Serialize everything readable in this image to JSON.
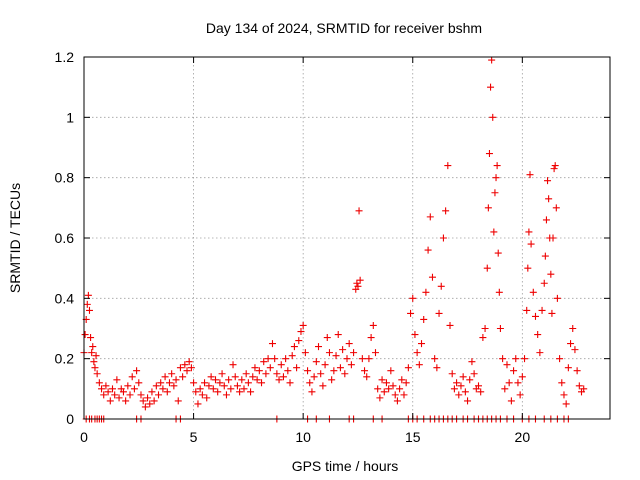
{
  "chart_data": {
    "type": "scatter",
    "title": "Day 134 of 2024, SRMTID for receiver bshm",
    "xlabel": "GPS time / hours",
    "ylabel": "SRMTID / TECUs",
    "xlim": [
      0,
      24
    ],
    "ylim": [
      0,
      1.2
    ],
    "x_ticks": [
      0,
      5,
      10,
      15,
      20
    ],
    "x_tick_labels": [
      "0",
      "5",
      "10",
      "15",
      "20"
    ],
    "y_ticks": [
      0,
      0.2,
      0.4,
      0.6,
      0.8,
      1,
      1.2
    ],
    "y_tick_labels": [
      "0",
      "0.2",
      "0.4",
      "0.6",
      "0.8",
      "1",
      "1.2"
    ],
    "grid": true,
    "marker": "plus",
    "color": "#ee0000",
    "series": [
      {
        "name": "SRMTID",
        "points": [
          [
            0.0,
            0.22
          ],
          [
            0.05,
            0.28
          ],
          [
            0.1,
            0.33
          ],
          [
            0.15,
            0.38
          ],
          [
            0.2,
            0.41
          ],
          [
            0.25,
            0.36
          ],
          [
            0.3,
            0.27
          ],
          [
            0.35,
            0.22
          ],
          [
            0.4,
            0.24
          ],
          [
            0.45,
            0.19
          ],
          [
            0.5,
            0.17
          ],
          [
            0.55,
            0.21
          ],
          [
            0.6,
            0.15
          ],
          [
            0.7,
            0.12
          ],
          [
            0.8,
            0.1
          ],
          [
            0.9,
            0.08
          ],
          [
            1.0,
            0.11
          ],
          [
            1.1,
            0.09
          ],
          [
            1.2,
            0.06
          ],
          [
            1.3,
            0.1
          ],
          [
            1.4,
            0.08
          ],
          [
            1.5,
            0.13
          ],
          [
            1.6,
            0.07
          ],
          [
            1.7,
            0.1
          ],
          [
            1.8,
            0.09
          ],
          [
            1.9,
            0.06
          ],
          [
            2.0,
            0.11
          ],
          [
            2.1,
            0.08
          ],
          [
            2.2,
            0.14
          ],
          [
            2.3,
            0.1
          ],
          [
            2.4,
            0.16
          ],
          [
            2.5,
            0.12
          ],
          [
            2.6,
            0.08
          ],
          [
            2.7,
            0.06
          ],
          [
            2.8,
            0.04
          ],
          [
            2.9,
            0.07
          ],
          [
            3.0,
            0.05
          ],
          [
            3.1,
            0.09
          ],
          [
            3.2,
            0.06
          ],
          [
            3.3,
            0.11
          ],
          [
            3.4,
            0.08
          ],
          [
            3.5,
            0.12
          ],
          [
            3.6,
            0.1
          ],
          [
            3.7,
            0.14
          ],
          [
            3.8,
            0.09
          ],
          [
            3.9,
            0.12
          ],
          [
            4.0,
            0.15
          ],
          [
            4.1,
            0.11
          ],
          [
            4.2,
            0.13
          ],
          [
            4.3,
            0.06
          ],
          [
            4.4,
            0.17
          ],
          [
            4.5,
            0.14
          ],
          [
            4.6,
            0.18
          ],
          [
            4.7,
            0.16
          ],
          [
            4.8,
            0.19
          ],
          [
            4.9,
            0.17
          ],
          [
            5.0,
            0.12
          ],
          [
            5.1,
            0.09
          ],
          [
            5.2,
            0.05
          ],
          [
            5.3,
            0.1
          ],
          [
            5.4,
            0.08
          ],
          [
            5.5,
            0.12
          ],
          [
            5.6,
            0.07
          ],
          [
            5.7,
            0.11
          ],
          [
            5.8,
            0.14
          ],
          [
            5.9,
            0.1
          ],
          [
            6.0,
            0.13
          ],
          [
            6.1,
            0.09
          ],
          [
            6.2,
            0.12
          ],
          [
            6.3,
            0.15
          ],
          [
            6.4,
            0.11
          ],
          [
            6.5,
            0.08
          ],
          [
            6.6,
            0.13
          ],
          [
            6.7,
            0.1
          ],
          [
            6.8,
            0.18
          ],
          [
            6.9,
            0.14
          ],
          [
            7.0,
            0.11
          ],
          [
            7.1,
            0.09
          ],
          [
            7.2,
            0.13
          ],
          [
            7.3,
            0.1
          ],
          [
            7.4,
            0.15
          ],
          [
            7.5,
            0.12
          ],
          [
            7.6,
            0.09
          ],
          [
            7.7,
            0.14
          ],
          [
            7.8,
            0.17
          ],
          [
            7.9,
            0.13
          ],
          [
            8.0,
            0.16
          ],
          [
            8.1,
            0.12
          ],
          [
            8.2,
            0.19
          ],
          [
            8.3,
            0.15
          ],
          [
            8.4,
            0.2
          ],
          [
            8.5,
            0.17
          ],
          [
            8.6,
            0.25
          ],
          [
            8.7,
            0.2
          ],
          [
            8.8,
            0.15
          ],
          [
            8.9,
            0.13
          ],
          [
            9.0,
            0.18
          ],
          [
            9.1,
            0.14
          ],
          [
            9.2,
            0.2
          ],
          [
            9.3,
            0.16
          ],
          [
            9.4,
            0.12
          ],
          [
            9.5,
            0.21
          ],
          [
            9.6,
            0.24
          ],
          [
            9.7,
            0.17
          ],
          [
            9.8,
            0.26
          ],
          [
            9.9,
            0.29
          ],
          [
            10.0,
            0.31
          ],
          [
            10.1,
            0.22
          ],
          [
            10.2,
            0.16
          ],
          [
            10.3,
            0.12
          ],
          [
            10.4,
            0.09
          ],
          [
            10.5,
            0.14
          ],
          [
            10.6,
            0.19
          ],
          [
            10.7,
            0.24
          ],
          [
            10.8,
            0.15
          ],
          [
            10.9,
            0.11
          ],
          [
            11.0,
            0.18
          ],
          [
            11.1,
            0.27
          ],
          [
            11.2,
            0.22
          ],
          [
            11.3,
            0.13
          ],
          [
            11.4,
            0.16
          ],
          [
            11.5,
            0.21
          ],
          [
            11.6,
            0.28
          ],
          [
            11.7,
            0.17
          ],
          [
            11.8,
            0.23
          ],
          [
            11.9,
            0.15
          ],
          [
            12.0,
            0.2
          ],
          [
            12.1,
            0.25
          ],
          [
            12.2,
            0.18
          ],
          [
            12.3,
            0.22
          ],
          [
            12.4,
            0.43
          ],
          [
            12.45,
            0.45
          ],
          [
            12.5,
            0.44
          ],
          [
            12.55,
            0.69
          ],
          [
            12.6,
            0.46
          ],
          [
            12.7,
            0.2
          ],
          [
            12.8,
            0.16
          ],
          [
            12.9,
            0.14
          ],
          [
            13.0,
            0.2
          ],
          [
            13.1,
            0.27
          ],
          [
            13.2,
            0.31
          ],
          [
            13.3,
            0.22
          ],
          [
            13.4,
            0.1
          ],
          [
            13.5,
            0.07
          ],
          [
            13.6,
            0.13
          ],
          [
            13.7,
            0.09
          ],
          [
            13.8,
            0.12
          ],
          [
            13.9,
            0.1
          ],
          [
            14.0,
            0.16
          ],
          [
            14.1,
            0.11
          ],
          [
            14.2,
            0.08
          ],
          [
            14.3,
            0.06
          ],
          [
            14.4,
            0.1
          ],
          [
            14.5,
            0.13
          ],
          [
            14.6,
            0.08
          ],
          [
            14.7,
            0.12
          ],
          [
            14.8,
            0.17
          ],
          [
            14.9,
            0.35
          ],
          [
            15.0,
            0.4
          ],
          [
            15.1,
            0.28
          ],
          [
            15.2,
            0.22
          ],
          [
            15.3,
            0.18
          ],
          [
            15.4,
            0.25
          ],
          [
            15.5,
            0.33
          ],
          [
            15.6,
            0.42
          ],
          [
            15.7,
            0.56
          ],
          [
            15.8,
            0.67
          ],
          [
            15.9,
            0.47
          ],
          [
            16.0,
            0.2
          ],
          [
            16.1,
            0.17
          ],
          [
            16.2,
            0.35
          ],
          [
            16.3,
            0.44
          ],
          [
            16.4,
            0.6
          ],
          [
            16.5,
            0.69
          ],
          [
            16.6,
            0.84
          ],
          [
            16.7,
            0.31
          ],
          [
            16.8,
            0.15
          ],
          [
            16.9,
            0.1
          ],
          [
            17.0,
            0.12
          ],
          [
            17.1,
            0.08
          ],
          [
            17.2,
            0.11
          ],
          [
            17.3,
            0.14
          ],
          [
            17.4,
            0.09
          ],
          [
            17.5,
            0.06
          ],
          [
            17.6,
            0.13
          ],
          [
            17.7,
            0.19
          ],
          [
            17.8,
            0.15
          ],
          [
            17.9,
            0.1
          ],
          [
            18.0,
            0.11
          ],
          [
            18.1,
            0.09
          ],
          [
            18.2,
            0.27
          ],
          [
            18.3,
            0.3
          ],
          [
            18.4,
            0.5
          ],
          [
            18.45,
            0.7
          ],
          [
            18.5,
            0.88
          ],
          [
            18.55,
            1.1
          ],
          [
            18.6,
            1.19
          ],
          [
            18.65,
            1.0
          ],
          [
            18.7,
            0.62
          ],
          [
            18.75,
            0.75
          ],
          [
            18.8,
            0.8
          ],
          [
            18.85,
            0.84
          ],
          [
            18.9,
            0.55
          ],
          [
            18.95,
            0.42
          ],
          [
            19.0,
            0.3
          ],
          [
            19.1,
            0.2
          ],
          [
            19.2,
            0.1
          ],
          [
            19.3,
            0.18
          ],
          [
            19.4,
            0.12
          ],
          [
            19.5,
            0.06
          ],
          [
            19.6,
            0.16
          ],
          [
            19.7,
            0.2
          ],
          [
            19.8,
            0.12
          ],
          [
            19.9,
            0.08
          ],
          [
            20.0,
            0.14
          ],
          [
            20.1,
            0.2
          ],
          [
            20.2,
            0.36
          ],
          [
            20.25,
            0.5
          ],
          [
            20.3,
            0.62
          ],
          [
            20.35,
            0.81
          ],
          [
            20.4,
            0.58
          ],
          [
            20.5,
            0.42
          ],
          [
            20.6,
            0.34
          ],
          [
            20.7,
            0.28
          ],
          [
            20.8,
            0.22
          ],
          [
            20.9,
            0.36
          ],
          [
            21.0,
            0.45
          ],
          [
            21.05,
            0.54
          ],
          [
            21.1,
            0.66
          ],
          [
            21.15,
            0.79
          ],
          [
            21.2,
            0.73
          ],
          [
            21.25,
            0.6
          ],
          [
            21.3,
            0.48
          ],
          [
            21.35,
            0.35
          ],
          [
            21.4,
            0.6
          ],
          [
            21.45,
            0.83
          ],
          [
            21.5,
            0.84
          ],
          [
            21.55,
            0.7
          ],
          [
            21.6,
            0.4
          ],
          [
            21.7,
            0.2
          ],
          [
            21.8,
            0.12
          ],
          [
            21.9,
            0.08
          ],
          [
            22.0,
            0.05
          ],
          [
            22.1,
            0.17
          ],
          [
            22.2,
            0.25
          ],
          [
            22.3,
            0.3
          ],
          [
            22.4,
            0.23
          ],
          [
            22.5,
            0.16
          ],
          [
            22.6,
            0.11
          ],
          [
            22.7,
            0.09
          ],
          [
            22.8,
            0.1
          ]
        ],
        "zero_points": [
          0.1,
          0.25,
          0.35,
          0.5,
          0.6,
          0.7,
          0.8,
          0.9,
          2.4,
          2.6,
          4.2,
          4.4,
          8.8,
          10.2,
          10.6,
          11.2,
          12.1,
          12.3,
          13.2,
          13.6,
          14.8,
          15.0,
          15.2,
          15.5,
          15.8,
          16.0,
          16.2,
          16.4,
          16.6,
          16.8,
          17.0,
          17.3,
          17.5,
          17.8,
          18.0,
          18.2,
          18.4,
          18.6,
          18.8,
          19.0,
          19.3,
          19.6,
          20.0,
          20.3,
          20.6,
          21.0,
          21.3,
          21.6,
          21.9,
          22.1
        ]
      }
    ]
  }
}
